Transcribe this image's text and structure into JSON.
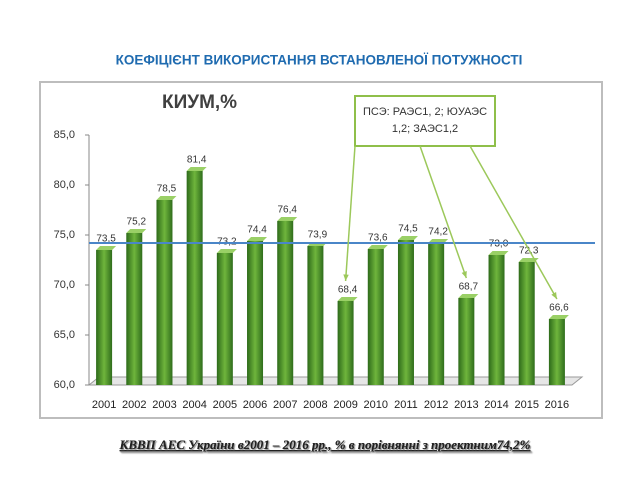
{
  "header": {
    "title": "КОЕФІЦІЄНТ ВИКОРИСТАННЯ ВСТАНОВЛЕНОЇ ПОТУЖНОСТІ"
  },
  "chart_data": {
    "type": "bar",
    "title": "КИУМ,%",
    "categories": [
      "2001",
      "2002",
      "2003",
      "2004",
      "2005",
      "2006",
      "2007",
      "2008",
      "2009",
      "2010",
      "2011",
      "2012",
      "2013",
      "2014",
      "2015",
      "2016"
    ],
    "values": [
      73.5,
      75.2,
      78.5,
      81.4,
      73.2,
      74.4,
      76.4,
      73.9,
      68.4,
      73.6,
      74.5,
      74.2,
      68.7,
      73.0,
      72.3,
      66.6
    ],
    "value_labels": [
      "73,5",
      "75,2",
      "78,5",
      "81,4",
      "73,2",
      "74,4",
      "76,4",
      "73,9",
      "68,4",
      "73,6",
      "74,5",
      "74,2",
      "68,7",
      "73,0",
      "72,3",
      "66,6"
    ],
    "color": "#3f8a24",
    "ylim": [
      60,
      85
    ],
    "yticks": [
      {
        "value": 60,
        "label": "60,0"
      },
      {
        "value": 65,
        "label": "65,0"
      },
      {
        "value": 70,
        "label": "70,0"
      },
      {
        "value": 75,
        "label": "75,0"
      },
      {
        "value": 80,
        "label": "80,0"
      },
      {
        "value": 85,
        "label": "85,0"
      }
    ],
    "grid": false,
    "reference_line": 74.2,
    "reference_color": "#4a86c8",
    "annotation": [
      "ПСЭ: РАЭС1, 2; ЮУАЭС",
      "1,2; ЗАЭС1,2"
    ],
    "caption": "КВВП АЕС України в2001 – 2016 рр., % в порівнянні з проектним74,2%"
  }
}
